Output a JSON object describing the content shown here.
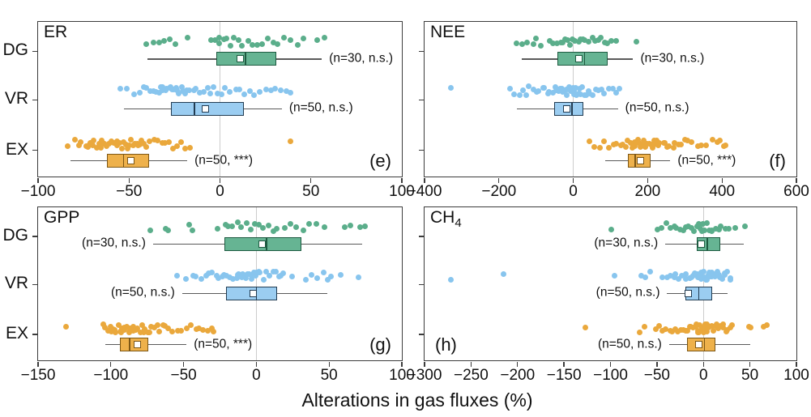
{
  "figure": {
    "xlabel": "Alterations in gas fluxes (%)",
    "row_labels": [
      "DG",
      "VR",
      "EX"
    ],
    "axis_color": "#3c3c3c",
    "grid_color": "#cccccc",
    "whisker_color": "#5a5a5a",
    "colors": {
      "DG": {
        "dot": "#5bae8b",
        "fill": "#66b493",
        "edge": "#1e5b41"
      },
      "VR": {
        "dot": "#88c5ee",
        "fill": "#9bcdf1",
        "edge": "#223c52"
      },
      "EX": {
        "dot": "#eaa83c",
        "fill": "#eeb14b",
        "edge": "#7d5715"
      }
    }
  },
  "chart_data": [
    {
      "type": "box-scatter",
      "title": "ER",
      "title_sub": "",
      "tag": "(e)",
      "tag_side": "right",
      "xlim": [
        -100,
        100
      ],
      "xticks": [
        -100,
        -50,
        0,
        50,
        100
      ],
      "rows": [
        {
          "group": "DG",
          "n": 30,
          "annotation": "(n=30, n.s.)",
          "ann_side": "right",
          "box": {
            "lo": -40,
            "q1": -2,
            "median": 14,
            "q3": 31,
            "hi": 56,
            "mean": 11
          },
          "points": [
            -41,
            -36,
            -33,
            -31,
            -28,
            -25,
            -18,
            -5,
            -3,
            -1,
            0,
            2,
            4,
            6,
            8,
            10,
            12,
            16,
            18,
            20,
            23,
            26,
            29,
            32,
            35,
            38,
            43,
            46,
            53,
            57
          ]
        },
        {
          "group": "VR",
          "n": 50,
          "annotation": "(n=50, n.s.)",
          "ann_side": "right",
          "box": {
            "lo": -53,
            "q1": -27,
            "median": -14,
            "q3": 13,
            "hi": 34,
            "mean": -8
          },
          "points": [
            -55,
            -51,
            -47,
            -44,
            -42,
            -40,
            -38,
            -36,
            -35,
            -34,
            -33,
            -32,
            -31,
            -30,
            -29,
            -28,
            -27,
            -26,
            -25,
            -24,
            -23,
            -22,
            -21,
            -20,
            -19,
            -18,
            -17,
            -15,
            -13,
            -11,
            -9,
            -7,
            -5,
            -3,
            -1,
            1,
            3,
            6,
            9,
            11,
            14,
            17,
            19,
            22,
            25,
            28,
            30,
            33,
            36,
            39
          ]
        },
        {
          "group": "EX",
          "n": 50,
          "annotation": "(n=50, ***)",
          "ann_side": "right",
          "box": {
            "lo": -82,
            "q1": -62,
            "median": -53,
            "q3": -39,
            "hi": -18,
            "mean": -49
          },
          "points": [
            -83,
            -80,
            -78,
            -76,
            -74,
            -73,
            -72,
            -71,
            -70,
            -69,
            -68,
            -67,
            -66,
            -65,
            -64,
            -63,
            -62,
            -61,
            -60,
            -59,
            -58,
            -57,
            -56,
            -55,
            -54,
            -53,
            -52,
            -51,
            -50,
            -49,
            -48,
            -47,
            -46,
            -45,
            -44,
            -43,
            -42,
            -40,
            -38,
            -36,
            -34,
            -32,
            -30,
            -28,
            -26,
            -24,
            -22,
            -19,
            -16,
            38
          ]
        }
      ]
    },
    {
      "type": "box-scatter",
      "title": "NEE",
      "title_sub": "",
      "tag": "(f)",
      "tag_side": "right",
      "xlim": [
        -400,
        600
      ],
      "xticks": [
        -400,
        -200,
        0,
        200,
        400,
        600
      ],
      "rows": [
        {
          "group": "DG",
          "n": 30,
          "annotation": "(n=30, n.s.)",
          "ann_side": "right",
          "box": {
            "lo": -139,
            "q1": -43,
            "median": 30,
            "q3": 92,
            "hi": 161,
            "mean": 15
          },
          "points": [
            -150,
            -135,
            -122,
            -110,
            -98,
            -88,
            -62,
            -52,
            -43,
            -35,
            -27,
            -20,
            -14,
            -8,
            -2,
            5,
            12,
            19,
            26,
            33,
            41,
            49,
            57,
            65,
            74,
            83,
            92,
            102,
            115,
            170
          ]
        },
        {
          "group": "VR",
          "n": 50,
          "annotation": "(n=50, n.s.)",
          "ann_side": "right",
          "box": {
            "lo": -152,
            "q1": -51,
            "median": -4,
            "q3": 26,
            "hi": 120,
            "mean": -17
          },
          "points": [
            -330,
            -170,
            -158,
            -147,
            -137,
            -127,
            -117,
            -108,
            -99,
            -91,
            -83,
            -76,
            -69,
            -63,
            -57,
            -51,
            -46,
            -41,
            -36,
            -32,
            -28,
            -24,
            -20,
            -17,
            -14,
            -11,
            -8,
            -5,
            -2,
            1,
            4,
            7,
            10,
            14,
            18,
            22,
            26,
            30,
            35,
            40,
            46,
            52,
            59,
            67,
            76,
            85,
            95,
            105,
            115,
            125
          ]
        },
        {
          "group": "EX",
          "n": 50,
          "annotation": "(n=50, ***)",
          "ann_side": "right",
          "box": {
            "lo": 86,
            "q1": 146,
            "median": 167,
            "q3": 208,
            "hi": 261,
            "mean": 180
          },
          "points": [
            45,
            58,
            72,
            85,
            97,
            108,
            118,
            127,
            135,
            142,
            148,
            153,
            158,
            163,
            167,
            171,
            175,
            179,
            183,
            187,
            191,
            195,
            199,
            203,
            207,
            211,
            215,
            219,
            224,
            229,
            234,
            240,
            246,
            252,
            259,
            266,
            274,
            282,
            290,
            299,
            309,
            320,
            332,
            345,
            358,
            372,
            385,
            395,
            403,
            410
          ]
        }
      ]
    },
    {
      "type": "box-scatter",
      "title": "GPP",
      "title_sub": "",
      "tag": "(g)",
      "tag_side": "right",
      "xlim": [
        -150,
        100
      ],
      "xticks": [
        -150,
        -100,
        -50,
        0,
        50,
        100
      ],
      "rows": [
        {
          "group": "DG",
          "n": 30,
          "annotation": "(n=30, n.s.)",
          "ann_side": "left",
          "box": {
            "lo": -71,
            "q1": -22,
            "median": 7,
            "q3": 31,
            "hi": 73,
            "mean": 4
          },
          "points": [
            -72,
            -63,
            -60,
            -46,
            -44,
            -26,
            -22,
            -19,
            -16,
            -13,
            -10,
            -7,
            -4,
            -1,
            2,
            5,
            8,
            11,
            15,
            19,
            23,
            27,
            32,
            37,
            42,
            47,
            60,
            65,
            71,
            75
          ]
        },
        {
          "group": "VR",
          "n": 50,
          "annotation": "(n=50, n.s.)",
          "ann_side": "left",
          "box": {
            "lo": -51,
            "q1": -21,
            "median": 0,
            "q3": 14,
            "hi": 49,
            "mean": -2
          },
          "points": [
            -54,
            -48,
            -44,
            -41,
            -38,
            -35,
            -32,
            -30,
            -28,
            -26,
            -24,
            -22,
            -20,
            -18,
            -16,
            -14,
            -13,
            -12,
            -11,
            -10,
            -9,
            -8,
            -7,
            -6,
            -5,
            -4,
            -3,
            -2,
            -1,
            0,
            1,
            2,
            3,
            5,
            7,
            9,
            11,
            13,
            15,
            17,
            19,
            25,
            35,
            38,
            42,
            46,
            49,
            51,
            57,
            71
          ]
        },
        {
          "group": "EX",
          "n": 50,
          "annotation": "(n=50, ***)",
          "ann_side": "right",
          "box": {
            "lo": -104,
            "q1": -94,
            "median": -87,
            "q3": -74,
            "hi": -48,
            "mean": -82
          },
          "points": [
            -130,
            -106,
            -104,
            -102,
            -100,
            -99,
            -98,
            -97,
            -96,
            -95,
            -94,
            -93,
            -92,
            -91,
            -90,
            -89,
            -88,
            -87,
            -86,
            -85,
            -84,
            -83,
            -82,
            -81,
            -80,
            -79,
            -78,
            -77,
            -76,
            -75,
            -74,
            -73,
            -72,
            -70,
            -68,
            -66,
            -64,
            -62,
            -60,
            -57,
            -54,
            -51,
            -48,
            -45,
            -42,
            -39,
            -36,
            -33,
            -31,
            -29
          ]
        }
      ]
    },
    {
      "type": "box-scatter",
      "title": "CH",
      "title_sub": "4",
      "tag": "(h)",
      "tag_side": "left",
      "xlim": [
        -300,
        100
      ],
      "xticks": [
        -300,
        -250,
        -200,
        -150,
        -100,
        -50,
        0,
        50,
        100
      ],
      "rows": [
        {
          "group": "DG",
          "n": 30,
          "annotation": "(n=30, n.s.)",
          "ann_side": "left",
          "box": {
            "lo": -41,
            "q1": -7,
            "median": 4,
            "q3": 18,
            "hi": 43,
            "mean": -2
          },
          "points": [
            -100,
            -48,
            -44,
            -40,
            -36,
            -32,
            -28,
            -25,
            -22,
            -19,
            -16,
            -13,
            -10,
            -8,
            -6,
            -4,
            -2,
            0,
            2,
            4,
            6,
            8,
            10,
            13,
            16,
            19,
            23,
            28,
            35,
            44
          ]
        },
        {
          "group": "VR",
          "n": 50,
          "annotation": "(n=50, n.s.)",
          "ann_side": "left",
          "box": {
            "lo": -39,
            "q1": -19,
            "median": -5,
            "q3": 9,
            "hi": 26,
            "mean": -16
          },
          "points": [
            -271,
            -215,
            -96,
            -68,
            -63,
            -58,
            -45,
            -40,
            -36,
            -32,
            -29,
            -26,
            -23,
            -20,
            -18,
            -16,
            -14,
            -12,
            -11,
            -10,
            -9,
            -8,
            -7,
            -6,
            -5,
            -4,
            -3,
            -2,
            -1,
            0,
            1,
            2,
            3,
            4,
            5,
            6,
            7,
            8,
            9,
            10,
            12,
            14,
            16,
            18,
            20,
            22,
            24,
            26,
            28,
            30
          ]
        },
        {
          "group": "EX",
          "n": 50,
          "annotation": "(n=50, n.s.)",
          "ann_side": "left",
          "box": {
            "lo": -37,
            "q1": -18,
            "median": 1,
            "q3": 13,
            "hi": 50,
            "mean": -5
          },
          "points": [
            -127,
            -69,
            -64,
            -52,
            -48,
            -44,
            -40,
            -36,
            -33,
            -30,
            -27,
            -24,
            -21,
            -19,
            -17,
            -15,
            -13,
            -11,
            -9,
            -8,
            -7,
            -6,
            -5,
            -4,
            -3,
            -2,
            -1,
            0,
            1,
            2,
            3,
            4,
            5,
            6,
            8,
            10,
            12,
            14,
            16,
            18,
            20,
            22,
            24,
            26,
            28,
            30,
            48,
            50,
            66,
            68
          ]
        }
      ]
    }
  ]
}
